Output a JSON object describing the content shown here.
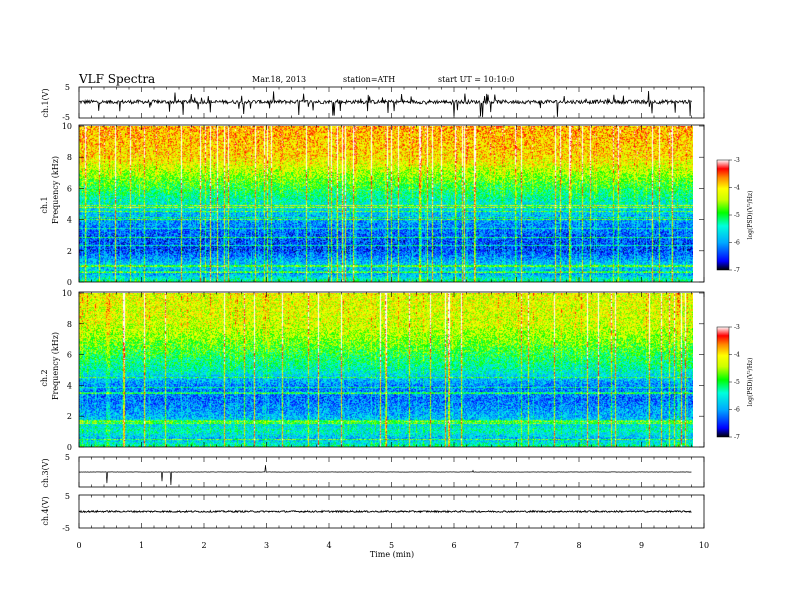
{
  "header": {
    "title": "VLF  Spectra",
    "date": "Mar.18, 2013",
    "station": "station=ATH",
    "start": "start  UT  =    10:10:0"
  },
  "chart_data": [
    {
      "type": "line",
      "panel": "ch1-waveform",
      "ylabel": "ch.1(V)",
      "yticks": [
        "5",
        "-5"
      ],
      "ylim": [
        -5,
        5
      ],
      "x_range_min": [
        0,
        9.8
      ],
      "level_V": 0.2,
      "noise_amplitude_V": 0.6,
      "color": "#000000"
    },
    {
      "type": "heatmap",
      "panel": "ch1-spectrogram",
      "ylabel_line1": "ch.1",
      "ylabel_line2": "Frequency  (kHz)",
      "yticks": [
        "0",
        "2",
        "4",
        "6",
        "8",
        "10"
      ],
      "ylim_kHz": [
        0,
        10
      ],
      "x_range_min": [
        0,
        9.8
      ],
      "colorbar": {
        "label": "log(PSD)(V²/Hz)",
        "ticks": [
          "-3",
          "-4",
          "-5",
          "-6",
          "-7"
        ],
        "range": [
          -7,
          -3
        ]
      },
      "profile_kHz_logPSD": [
        [
          0,
          -5.2
        ],
        [
          0.5,
          -6.0
        ],
        [
          1,
          -5.7
        ],
        [
          2,
          -6.4
        ],
        [
          3,
          -6.3
        ],
        [
          4,
          -6.0
        ],
        [
          5,
          -5.5
        ],
        [
          6,
          -5.0
        ],
        [
          7,
          -4.5
        ],
        [
          8,
          -4.0
        ],
        [
          10,
          -3.8
        ]
      ]
    },
    {
      "type": "heatmap",
      "panel": "ch2-spectrogram",
      "ylabel_line1": "ch.2",
      "ylabel_line2": "Frequency  (kHz)",
      "yticks": [
        "0",
        "2",
        "4",
        "6",
        "8",
        "10"
      ],
      "ylim_kHz": [
        0,
        10
      ],
      "x_range_min": [
        0,
        9.8
      ],
      "colorbar": {
        "label": "log(PSD)(V²/Hz)",
        "ticks": [
          "-3",
          "-4",
          "-5",
          "-6",
          "-7"
        ],
        "range": [
          -7,
          -3
        ]
      },
      "profile_kHz_logPSD": [
        [
          0,
          -5.2
        ],
        [
          0.5,
          -5.9
        ],
        [
          1,
          -5.4
        ],
        [
          2,
          -5.9
        ],
        [
          3,
          -6.2
        ],
        [
          4,
          -6.1
        ],
        [
          5,
          -5.4
        ],
        [
          6,
          -5.0
        ],
        [
          7,
          -4.6
        ],
        [
          8,
          -4.3
        ],
        [
          10,
          -4.2
        ]
      ]
    },
    {
      "type": "line",
      "panel": "ch3-waveform",
      "ylabel": "ch.3(V)",
      "yticks": [
        "5",
        "-5"
      ],
      "ylim": [
        -5,
        5
      ],
      "x_range_min": [
        0,
        9.8
      ],
      "level_V": 0,
      "noise_amplitude_V": 0.05,
      "color": "#000000"
    },
    {
      "type": "line",
      "panel": "ch4-waveform",
      "ylabel": "ch.4(V)",
      "yticks": [
        "5",
        "-5"
      ],
      "ylim": [
        -5,
        5
      ],
      "x_range_min": [
        0,
        9.8
      ],
      "level_V": 0,
      "noise_amplitude_V": 0.25,
      "color": "#000000"
    }
  ],
  "x_axis": {
    "xlabel": "Time  (min)",
    "ticks": [
      "0",
      "1",
      "2",
      "3",
      "4",
      "5",
      "6",
      "7",
      "8",
      "9",
      "10"
    ],
    "xlim": [
      0,
      10
    ]
  }
}
